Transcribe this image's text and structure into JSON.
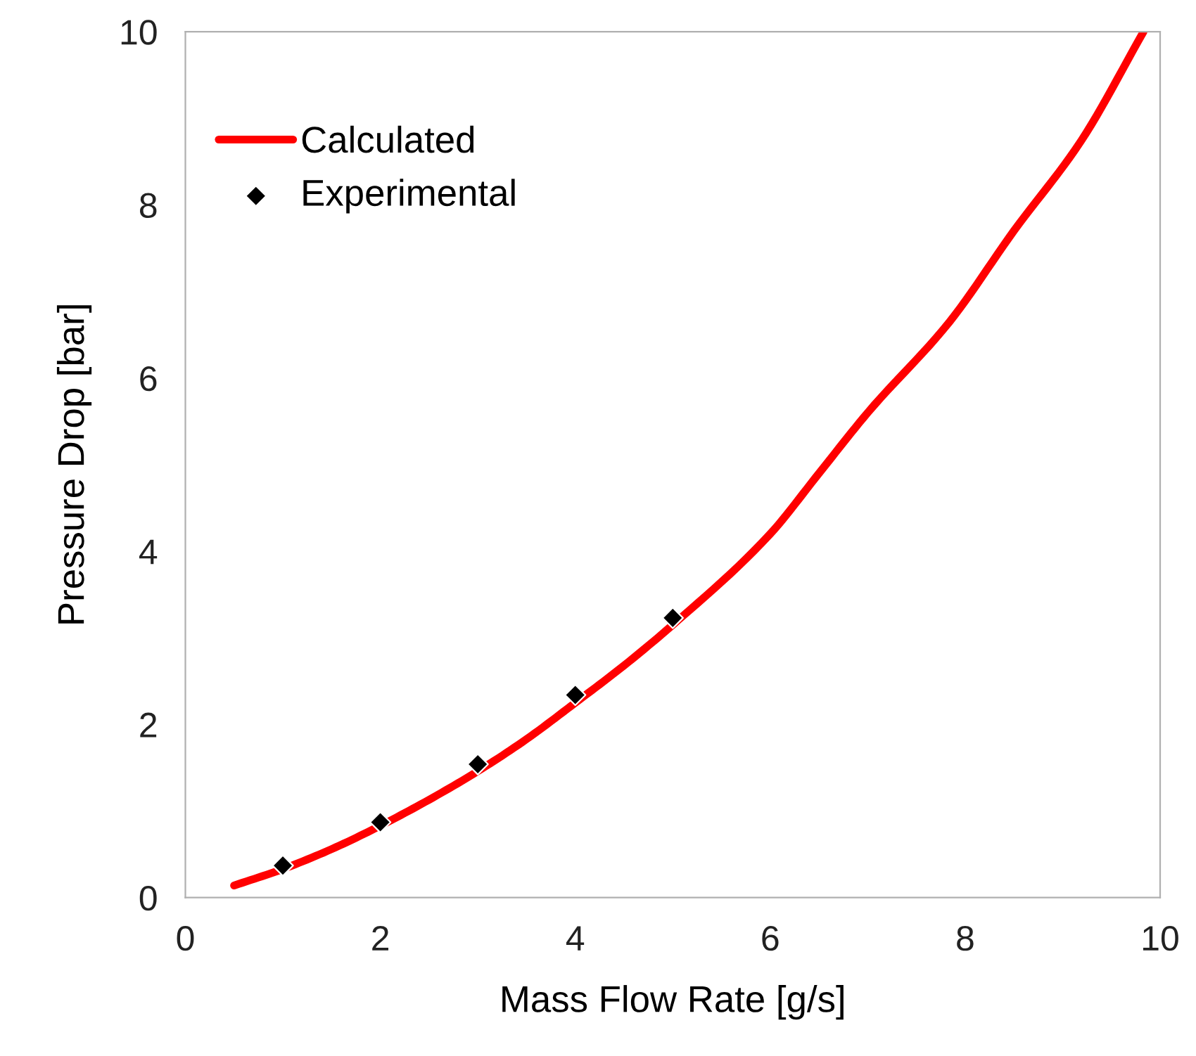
{
  "chart_data": {
    "type": "line",
    "xlabel": "Mass Flow Rate [g/s]",
    "ylabel": "Pressure Drop [bar]",
    "xlim": [
      0,
      10
    ],
    "xticks": [
      0,
      2,
      4,
      6,
      8,
      10
    ],
    "ylim": [
      0,
      10
    ],
    "yticks": [
      0,
      2,
      4,
      6,
      8,
      10
    ],
    "grid": false,
    "legend": "top left",
    "series": [
      {
        "name": "Calculated",
        "color": "#ff0000",
        "marker": "none",
        "line_style": "solid",
        "x": [
          0.5,
          1,
          1.5,
          2,
          2.5,
          3,
          3.5,
          4,
          4.5,
          5,
          6,
          6.5,
          7,
          7.84,
          8.5,
          9.19,
          9.83
        ],
        "values": [
          0.14,
          0.33,
          0.56,
          0.83,
          1.13,
          1.46,
          1.83,
          2.25,
          2.68,
          3.15,
          4.2,
          4.9,
          5.6,
          6.65,
          7.7,
          8.74,
          10
        ]
      },
      {
        "name": "Experimental",
        "type": "scatter",
        "color": "#000000",
        "marker": "diamond",
        "x": [
          1,
          2,
          3,
          4,
          5
        ],
        "values": [
          0.37,
          0.87,
          1.54,
          2.34,
          3.23
        ]
      }
    ]
  }
}
